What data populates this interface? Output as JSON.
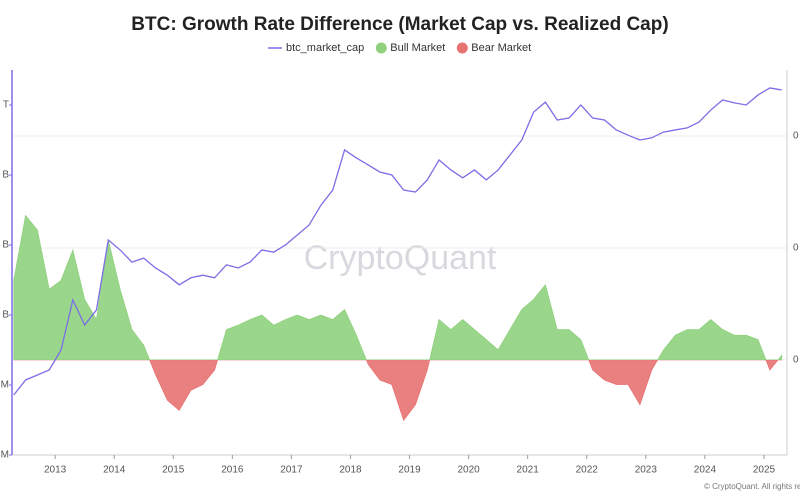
{
  "chart_data": {
    "type": "line_area",
    "title": "BTC: Growth Rate Difference (Market Cap vs. Realized Cap)",
    "watermark": "CryptoQuant",
    "copyright": "© CryptoQuant. All rights re",
    "x": [
      2012.3,
      2012.5,
      2012.7,
      2012.9,
      2013.1,
      2013.3,
      2013.5,
      2013.7,
      2013.9,
      2014.1,
      2014.3,
      2014.5,
      2014.7,
      2014.9,
      2015.1,
      2015.3,
      2015.5,
      2015.7,
      2015.9,
      2016.1,
      2016.3,
      2016.5,
      2016.7,
      2016.9,
      2017.1,
      2017.3,
      2017.5,
      2017.7,
      2017.9,
      2018.1,
      2018.3,
      2018.5,
      2018.7,
      2018.9,
      2019.1,
      2019.3,
      2019.5,
      2019.7,
      2019.9,
      2020.1,
      2020.3,
      2020.5,
      2020.7,
      2020.9,
      2021.1,
      2021.3,
      2021.5,
      2021.7,
      2021.9,
      2022.1,
      2022.3,
      2022.5,
      2022.7,
      2022.9,
      2023.1,
      2023.3,
      2023.5,
      2023.7,
      2023.9,
      2024.1,
      2024.3,
      2024.5,
      2024.7,
      2024.9,
      2025.1,
      2025.3
    ],
    "xlim": [
      2012.27,
      2025.39
    ],
    "xticks": [
      2013,
      2014,
      2015,
      2016,
      2017,
      2018,
      2019,
      2020,
      2021,
      2022,
      2023,
      2024,
      2025
    ],
    "ylog": true,
    "ylim": [
      10000000,
      3160000000000
    ],
    "yticks": [
      {
        "value": 1000000000000,
        "label": "T"
      },
      {
        "value": 100000000000,
        "label": "B"
      },
      {
        "value": 10000000000,
        "label": "B"
      },
      {
        "value": 1000000000,
        "label": "B"
      },
      {
        "value": 100000000,
        "label": "M"
      },
      {
        "value": 10000000,
        "label": "M"
      }
    ],
    "y2lim": [
      -0.085,
      0.259
    ],
    "y2ticks": [
      {
        "value": 0.2,
        "label": "0"
      },
      {
        "value": 0.1,
        "label": "0"
      },
      0
    ],
    "grid": true,
    "series": [
      {
        "name": "btc_market_cap",
        "kind": "line",
        "color": "#7b6ee6",
        "values": [
          72000000,
          118000000,
          139000000,
          164000000,
          316000000,
          1640000000,
          720000000,
          1180000000,
          11800000000,
          8500000000,
          5700000000,
          6500000000,
          4700000000,
          3700000000,
          2700000000,
          3400000000,
          3700000000,
          3400000000,
          5200000000,
          4700000000,
          5700000000,
          8500000000,
          7900000000,
          10000000000,
          13900000000,
          19300000000,
          37000000000,
          61000000000,
          228000000000,
          175000000000,
          139000000000,
          110000000000,
          100000000000,
          61000000000,
          57000000000,
          85000000000,
          164000000000,
          118000000000,
          91000000000,
          118000000000,
          85000000000,
          118000000000,
          193000000000,
          316000000000,
          790000000000,
          1100000000000,
          610000000000,
          650000000000,
          1000000000000,
          650000000000,
          610000000000,
          440000000000,
          370000000000,
          316000000000,
          340000000000,
          410000000000,
          440000000000,
          470000000000,
          570000000000,
          850000000000,
          1180000000000,
          1070000000000,
          1000000000000,
          1390000000000,
          1750000000000,
          1640000000000
        ]
      },
      {
        "kind": "area",
        "axis": "y2",
        "positive_name": "Bull Market",
        "positive_color": "#8fd17e",
        "negative_name": "Bear Market",
        "negative_color": "#e77272",
        "values": [
          0.071,
          0.129,
          0.116,
          0.063,
          0.071,
          0.098,
          0.054,
          0.036,
          0.107,
          0.063,
          0.027,
          0.013,
          -0.013,
          -0.036,
          -0.045,
          -0.027,
          -0.022,
          -0.009,
          0.027,
          0.031,
          0.036,
          0.04,
          0.031,
          0.036,
          0.04,
          0.036,
          0.04,
          0.036,
          0.045,
          0.022,
          -0.004,
          -0.018,
          -0.022,
          -0.054,
          -0.04,
          -0.009,
          0.036,
          0.027,
          0.036,
          0.027,
          0.018,
          0.009,
          0.027,
          0.045,
          0.054,
          0.067,
          0.027,
          0.027,
          0.018,
          -0.009,
          -0.018,
          -0.022,
          -0.022,
          -0.04,
          -0.009,
          0.009,
          0.022,
          0.027,
          0.027,
          0.036,
          0.027,
          0.022,
          0.022,
          0.018,
          -0.009,
          0.004
        ]
      }
    ]
  }
}
